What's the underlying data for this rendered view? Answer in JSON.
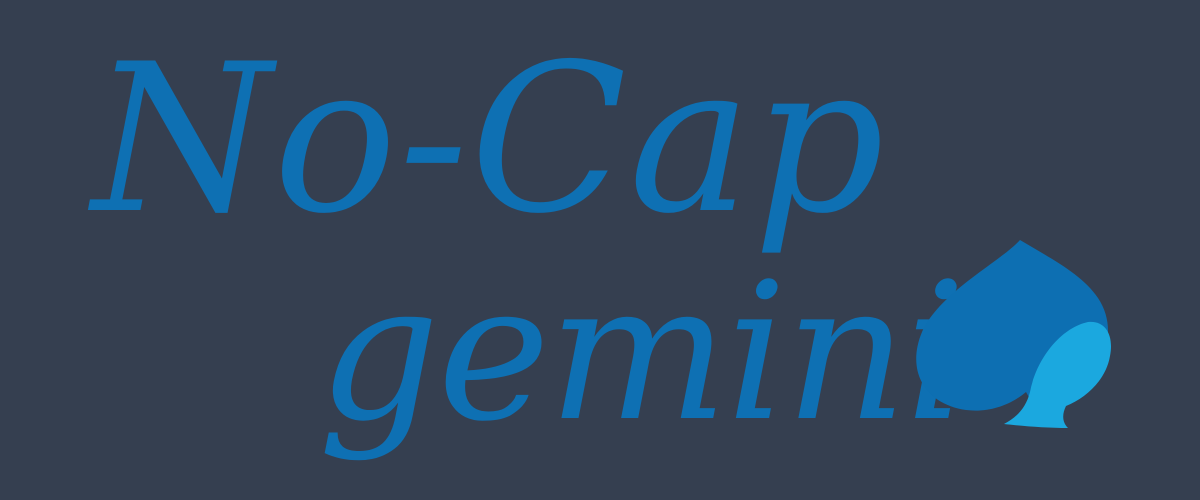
{
  "logo": {
    "line1": "No-Cap",
    "line2": "gemini",
    "colors": {
      "background": "#353F50",
      "text": "#0E70B3",
      "spade_dark": "#0D6FB2",
      "spade_light": "#1BA8DF"
    },
    "icons": {
      "mark": "spade-icon"
    }
  }
}
